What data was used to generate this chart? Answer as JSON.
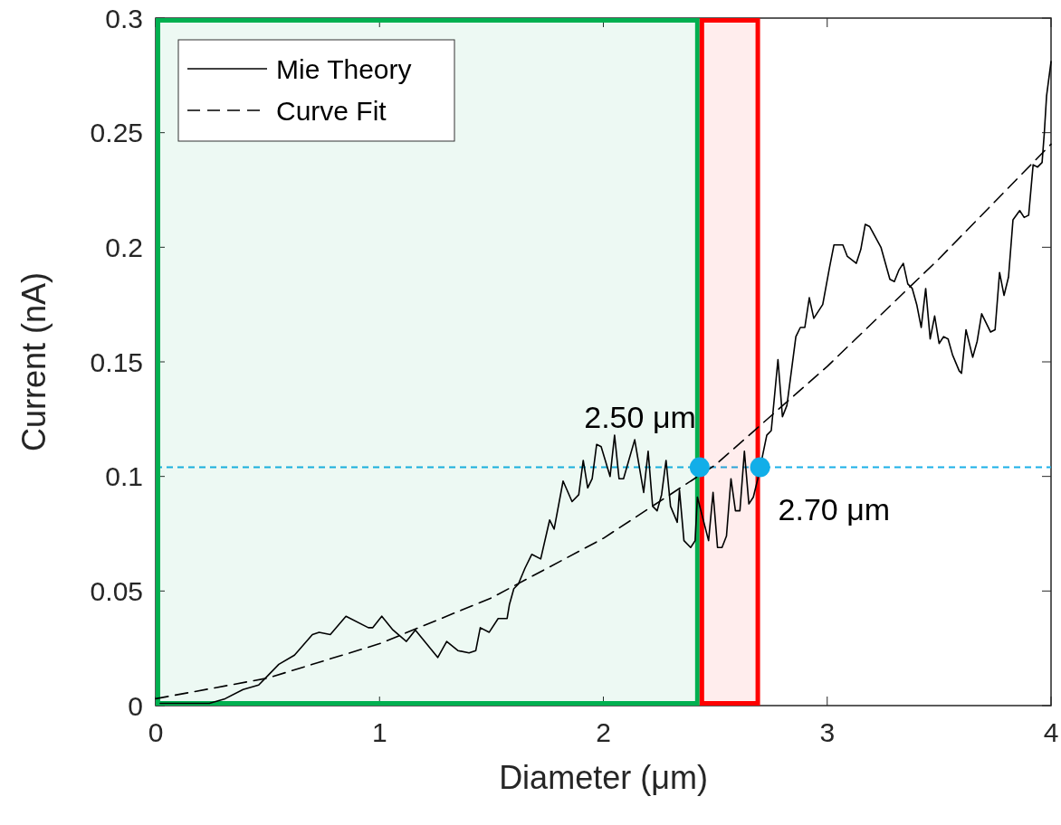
{
  "chart_data": {
    "type": "line",
    "xlabel": "Diameter (μm)",
    "ylabel": "Current (nA)",
    "xlim": [
      0,
      4
    ],
    "ylim": [
      0,
      0.3
    ],
    "xticks": [
      0,
      1,
      2,
      3,
      4
    ],
    "yticks": [
      0,
      0.05,
      0.1,
      0.15,
      0.2,
      0.25,
      0.3
    ],
    "grid": false,
    "legend": "top left",
    "series": [
      {
        "name": "Mie Theory",
        "color": "#000000",
        "line_style": "solid",
        "x": [
          0.02,
          0.24,
          0.31,
          0.39,
          0.46,
          0.5,
          0.55,
          0.62,
          0.7,
          0.73,
          0.78,
          0.85,
          0.95,
          0.97,
          1.01,
          1.06,
          1.12,
          1.16,
          1.26,
          1.3,
          1.35,
          1.4,
          1.43,
          1.45,
          1.49,
          1.53,
          1.57,
          1.58,
          1.6,
          1.62,
          1.65,
          1.68,
          1.72,
          1.76,
          1.78,
          1.82,
          1.86,
          1.89,
          1.91,
          1.93,
          1.95,
          1.97,
          1.99,
          2.03,
          2.05,
          2.07,
          2.09,
          2.14,
          2.18,
          2.2,
          2.22,
          2.24,
          2.26,
          2.28,
          2.3,
          2.33,
          2.34,
          2.36,
          2.39,
          2.41,
          2.42,
          2.47,
          2.49,
          2.51,
          2.53,
          2.55,
          2.57,
          2.59,
          2.61,
          2.63,
          2.65,
          2.67,
          2.69,
          2.73,
          2.75,
          2.78,
          2.8,
          2.82,
          2.86,
          2.88,
          2.9,
          2.92,
          2.94,
          2.98,
          3.01,
          3.03,
          3.07,
          3.09,
          3.13,
          3.15,
          3.17,
          3.19,
          3.24,
          3.28,
          3.3,
          3.32,
          3.34,
          3.36,
          3.38,
          3.4,
          3.42,
          3.44,
          3.46,
          3.48,
          3.5,
          3.52,
          3.54,
          3.56,
          3.59,
          3.6,
          3.62,
          3.65,
          3.67,
          3.69,
          3.73,
          3.75,
          3.77,
          3.79,
          3.81,
          3.83,
          3.86,
          3.88,
          3.9,
          3.92,
          3.94,
          3.96,
          3.97,
          3.98,
          4.0
        ],
        "values": [
          0.001,
          0.001,
          0.003,
          0.007,
          0.009,
          0.013,
          0.018,
          0.022,
          0.031,
          0.032,
          0.031,
          0.039,
          0.034,
          0.034,
          0.039,
          0.033,
          0.028,
          0.033,
          0.021,
          0.028,
          0.024,
          0.023,
          0.024,
          0.034,
          0.032,
          0.038,
          0.038,
          0.044,
          0.051,
          0.053,
          0.06,
          0.066,
          0.064,
          0.081,
          0.077,
          0.098,
          0.089,
          0.092,
          0.107,
          0.095,
          0.099,
          0.114,
          0.113,
          0.1,
          0.118,
          0.099,
          0.099,
          0.116,
          0.093,
          0.111,
          0.087,
          0.085,
          0.092,
          0.107,
          0.087,
          0.08,
          0.094,
          0.072,
          0.069,
          0.072,
          0.091,
          0.072,
          0.093,
          0.069,
          0.069,
          0.074,
          0.099,
          0.085,
          0.085,
          0.111,
          0.088,
          0.091,
          0.099,
          0.118,
          0.12,
          0.151,
          0.126,
          0.131,
          0.161,
          0.165,
          0.165,
          0.178,
          0.169,
          0.175,
          0.191,
          0.201,
          0.201,
          0.196,
          0.193,
          0.199,
          0.21,
          0.209,
          0.2,
          0.186,
          0.185,
          0.19,
          0.193,
          0.184,
          0.182,
          0.175,
          0.165,
          0.182,
          0.16,
          0.17,
          0.158,
          0.161,
          0.16,
          0.153,
          0.146,
          0.145,
          0.164,
          0.152,
          0.159,
          0.171,
          0.163,
          0.164,
          0.189,
          0.179,
          0.187,
          0.212,
          0.216,
          0.213,
          0.214,
          0.236,
          0.235,
          0.237,
          0.25,
          0.266,
          0.281
        ]
      },
      {
        "name": "Curve Fit",
        "color": "#000000",
        "line_style": "dashed",
        "x": [
          0,
          0.5,
          1,
          1.5,
          2,
          2.5,
          3,
          3.5,
          4
        ],
        "values": [
          0.003,
          0.012,
          0.027,
          0.047,
          0.073,
          0.105,
          0.148,
          0.195,
          0.245
        ]
      },
      {
        "type": "scatter",
        "marker": "circle",
        "color": "#12aee8",
        "x": [
          2.43,
          2.7
        ],
        "values": [
          0.104,
          0.104
        ]
      }
    ],
    "ref_lines": [
      {
        "axis": "y",
        "value": 0.104,
        "color": "#1ab0e8",
        "line_style": "dashed"
      }
    ],
    "bands": [
      {
        "axis": "x",
        "from": 0,
        "to": 2.43,
        "color": "#00b050"
      },
      {
        "axis": "x",
        "from": 2.43,
        "to": 2.7,
        "color": "#ff0000"
      }
    ],
    "annotations": [
      {
        "text": "2.50 μm",
        "x": 2.43,
        "y": 0.104
      },
      {
        "text": "2.70 μm",
        "x": 2.7,
        "y": 0.104
      }
    ]
  }
}
